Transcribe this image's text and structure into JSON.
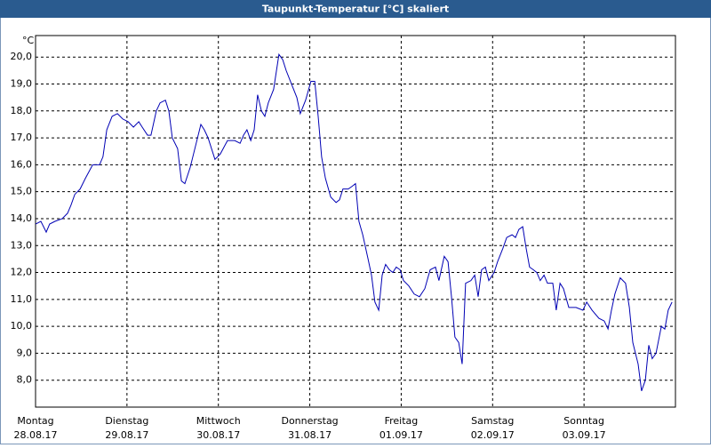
{
  "chart_data": {
    "type": "line",
    "title": "Taupunkt-Temperatur [°C] skaliert",
    "y_unit": "°C",
    "xlim": [
      0,
      168
    ],
    "xticks": [
      {
        "value": 0,
        "label": "Montag"
      },
      {
        "value": 24,
        "label": "Dienstag"
      },
      {
        "value": 48,
        "label": "Mittwoch"
      },
      {
        "value": 72,
        "label": "Donnerstag"
      },
      {
        "value": 96,
        "label": "Freitag"
      },
      {
        "value": 120,
        "label": "Samstag"
      },
      {
        "value": 144,
        "label": "Sonntag"
      }
    ],
    "xtick_dates": [
      "28.08.17",
      "29.08.17",
      "30.08.17",
      "31.08.17",
      "01.09.17",
      "02.09.17",
      "03.09.17"
    ],
    "ylim": [
      7.0,
      20.8
    ],
    "yticks": [
      {
        "value": 8,
        "label": "8,0"
      },
      {
        "value": 9,
        "label": "9,0"
      },
      {
        "value": 10,
        "label": "10,0"
      },
      {
        "value": 11,
        "label": "11,0"
      },
      {
        "value": 12,
        "label": "12,0"
      },
      {
        "value": 13,
        "label": "13,0"
      },
      {
        "value": 14,
        "label": "14,0"
      },
      {
        "value": 15,
        "label": "15,0"
      },
      {
        "value": 16,
        "label": "16,0"
      },
      {
        "value": 17,
        "label": "17,0"
      },
      {
        "value": 18,
        "label": "18,0"
      },
      {
        "value": 19,
        "label": "19,0"
      },
      {
        "value": 20,
        "label": "20,0"
      }
    ],
    "grid": true,
    "color": "#0000b4",
    "x": [
      0,
      1.4,
      2.8,
      3.7,
      5.1,
      7.0,
      8.4,
      9.3,
      10.3,
      11.7,
      13.1,
      15.0,
      16.8,
      17.7,
      18.7,
      20.1,
      21.5,
      22.9,
      24.3,
      25.7,
      27.1,
      28.0,
      29.4,
      30.3,
      31.7,
      32.7,
      34.1,
      35.0,
      35.9,
      37.3,
      38.3,
      39.2,
      40.6,
      42.0,
      43.4,
      44.3,
      45.3,
      47.1,
      48.5,
      50.4,
      52.3,
      53.7,
      54.6,
      55.5,
      56.5,
      57.4,
      58.3,
      59.3,
      60.2,
      61.1,
      62.5,
      63.9,
      64.9,
      65.8,
      67.2,
      68.6,
      69.5,
      70.9,
      72.3,
      73.3,
      74.2,
      75.1,
      76.1,
      77.5,
      78.9,
      79.8,
      80.7,
      82.1,
      83.1,
      84.0,
      84.9,
      85.9,
      87.3,
      88.2,
      89.1,
      90.1,
      91.0,
      91.9,
      92.9,
      93.8,
      94.7,
      95.7,
      96.6,
      98.0,
      99.4,
      100.8,
      102.2,
      103.6,
      105.0,
      105.9,
      107.3,
      108.3,
      109.2,
      110.1,
      111.1,
      112.0,
      112.9,
      114.3,
      115.3,
      116.2,
      117.1,
      118.1,
      119.0,
      120.4,
      121.3,
      122.7,
      123.7,
      125.1,
      126.0,
      126.9,
      127.9,
      128.8,
      129.7,
      130.7,
      131.6,
      132.5,
      133.5,
      134.4,
      135.8,
      136.7,
      137.7,
      138.6,
      140.0,
      141.9,
      143.7,
      144.7,
      146.1,
      147.9,
      149.3,
      150.3,
      151.2,
      152.1,
      153.5,
      154.9,
      155.9,
      156.8,
      158.2,
      159.1,
      160.1,
      161.0,
      161.9,
      162.9,
      164.3,
      165.2,
      166.1,
      167.1
    ],
    "values": [
      13.8,
      13.9,
      13.5,
      13.8,
      13.9,
      14.0,
      14.2,
      14.5,
      14.9,
      15.1,
      15.5,
      16.0,
      16.0,
      16.3,
      17.3,
      17.8,
      17.9,
      17.7,
      17.6,
      17.4,
      17.6,
      17.4,
      17.1,
      17.1,
      18.0,
      18.3,
      18.4,
      18.0,
      17.0,
      16.6,
      15.4,
      15.3,
      15.9,
      16.7,
      17.5,
      17.3,
      17.0,
      16.2,
      16.4,
      16.9,
      16.9,
      16.8,
      17.1,
      17.3,
      16.9,
      17.3,
      18.6,
      18.0,
      17.8,
      18.3,
      18.8,
      20.1,
      19.9,
      19.5,
      19.0,
      18.5,
      17.9,
      18.4,
      19.1,
      19.1,
      17.8,
      16.3,
      15.5,
      14.8,
      14.6,
      14.7,
      15.1,
      15.1,
      15.2,
      15.3,
      13.9,
      13.4,
      12.5,
      11.9,
      10.9,
      10.6,
      11.9,
      12.3,
      12.1,
      12.0,
      12.2,
      12.1,
      11.7,
      11.5,
      11.2,
      11.1,
      11.4,
      12.1,
      12.2,
      11.7,
      12.6,
      12.4,
      11.1,
      9.6,
      9.4,
      8.6,
      11.6,
      11.7,
      11.9,
      11.1,
      12.1,
      12.2,
      11.7,
      12.0,
      12.4,
      12.9,
      13.3,
      13.4,
      13.3,
      13.6,
      13.7,
      12.9,
      12.2,
      12.1,
      12.0,
      11.7,
      11.9,
      11.6,
      11.6,
      10.6,
      11.6,
      11.4,
      10.7,
      10.7,
      10.6,
      10.9,
      10.6,
      10.3,
      10.2,
      9.9,
      10.6,
      11.2,
      11.8,
      11.6,
      10.7,
      9.4,
      8.6,
      7.6,
      8.0,
      9.3,
      8.8,
      9.0,
      10.0,
      9.9,
      10.6,
      10.9
    ]
  }
}
